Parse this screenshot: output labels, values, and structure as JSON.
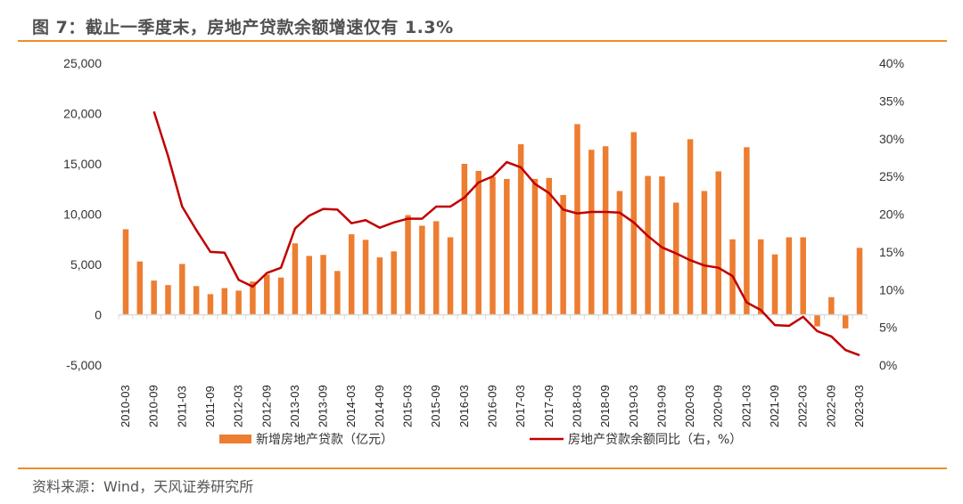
{
  "header": {
    "title": "图 7：截止一季度末，房地产贷款余额增速仅有 1.3%"
  },
  "footer": {
    "source": "资料来源：Wind，天风证券研究所"
  },
  "colors": {
    "accent_rule": "#f28c28",
    "bar": "#ed7d31",
    "line": "#c00000"
  },
  "chart_data": {
    "type": "bar+line",
    "title": "截止一季度末，房地产贷款余额增速仅有 1.3%",
    "xlabel": "",
    "ylabel_left": "亿元",
    "ylabel_right": "%",
    "categories": [
      "2010-03",
      "2010-06",
      "2010-09",
      "2010-12",
      "2011-03",
      "2011-06",
      "2011-09",
      "2011-12",
      "2012-03",
      "2012-06",
      "2012-09",
      "2012-12",
      "2013-03",
      "2013-06",
      "2013-09",
      "2013-12",
      "2014-03",
      "2014-06",
      "2014-09",
      "2014-12",
      "2015-03",
      "2015-06",
      "2015-09",
      "2015-12",
      "2016-03",
      "2016-06",
      "2016-09",
      "2016-12",
      "2017-03",
      "2017-06",
      "2017-09",
      "2017-12",
      "2018-03",
      "2018-06",
      "2018-09",
      "2018-12",
      "2019-03",
      "2019-06",
      "2019-09",
      "2019-12",
      "2020-03",
      "2020-06",
      "2020-09",
      "2020-12",
      "2021-03",
      "2021-06",
      "2021-09",
      "2021-12",
      "2022-03",
      "2022-06",
      "2022-09",
      "2022-12",
      "2023-03"
    ],
    "x_tick_labels": [
      "2010-03",
      "2010-09",
      "2011-03",
      "2011-09",
      "2012-03",
      "2012-09",
      "2013-03",
      "2013-09",
      "2014-03",
      "2014-09",
      "2015-03",
      "2015-09",
      "2016-03",
      "2016-09",
      "2017-03",
      "2017-09",
      "2018-03",
      "2018-09",
      "2019-03",
      "2019-09",
      "2020-03",
      "2020-09",
      "2021-03",
      "2021-09",
      "2022-03",
      "2022-09",
      "2023-03"
    ],
    "series": [
      {
        "name": "新增房地产贷款（亿元）",
        "type": "bar",
        "axis": "left",
        "values": [
          8500,
          5300,
          3400,
          2950,
          5050,
          2850,
          2050,
          2650,
          2400,
          3300,
          4000,
          3700,
          7100,
          5850,
          5950,
          4350,
          8000,
          7450,
          5700,
          6300,
          9900,
          8850,
          9300,
          7700,
          15000,
          14300,
          13700,
          13500,
          16950,
          13500,
          13600,
          11900,
          18950,
          16400,
          16750,
          12300,
          18150,
          13800,
          13750,
          11150,
          17450,
          12300,
          14250,
          7500,
          16650,
          7500,
          6000,
          7700,
          7700,
          -1150,
          1750,
          -1350,
          6650
        ]
      },
      {
        "name": "房地产贷款余额同比（右，%）",
        "type": "line",
        "axis": "right",
        "values": [
          null,
          null,
          33.6,
          27.7,
          21.0,
          17.9,
          15.0,
          14.9,
          11.3,
          10.4,
          12.2,
          12.9,
          18.1,
          19.8,
          20.7,
          20.6,
          18.8,
          19.2,
          18.2,
          18.9,
          19.4,
          19.4,
          21.0,
          21.0,
          22.2,
          24.2,
          25.0,
          26.9,
          26.2,
          24.0,
          22.8,
          20.6,
          20.1,
          20.3,
          20.3,
          20.2,
          18.9,
          17.1,
          15.6,
          14.8,
          13.9,
          13.2,
          12.9,
          11.8,
          8.3,
          7.3,
          5.3,
          5.2,
          6.4,
          4.5,
          3.8,
          2.0,
          1.3
        ]
      }
    ],
    "y_left": {
      "min": -5000,
      "max": 25000,
      "step": 5000,
      "tick_labels": [
        "-5,000",
        "0",
        "5,000",
        "10,000",
        "15,000",
        "20,000",
        "25,000"
      ]
    },
    "y_right": {
      "min": 0,
      "max": 40,
      "step": 5,
      "tick_labels": [
        "0%",
        "5%",
        "10%",
        "15%",
        "20%",
        "25%",
        "30%",
        "35%",
        "40%"
      ]
    },
    "grid": false,
    "legend": {
      "position": "bottom",
      "entries": [
        "新增房地产贷款（亿元）",
        "房地产贷款余额同比（右，%）"
      ]
    }
  }
}
